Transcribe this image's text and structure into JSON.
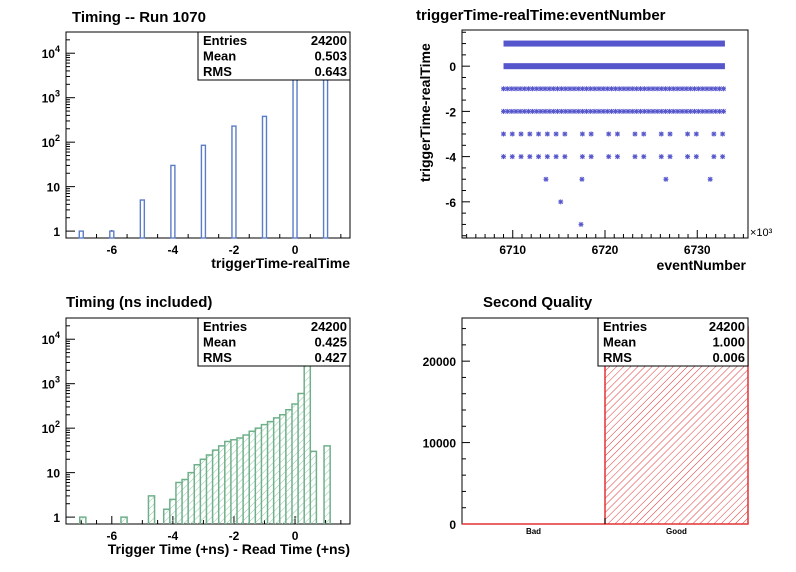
{
  "colors": {
    "blue": "#5b7cc7",
    "green": "#6fb08a",
    "green_fill": "#8cc8a4",
    "red": "#e33434",
    "scatter": "#5555cc"
  },
  "chart_data": [
    {
      "id": "p1",
      "type": "bar",
      "title": "Timing -- Run 1070",
      "xlabel": "triggerTime-realTime",
      "ylabel": "",
      "xlim": [
        -7.5,
        1.8
      ],
      "ylim": [
        0.7,
        30000
      ],
      "yscale": "log",
      "x_ticks": [
        -6,
        -4,
        -2,
        0
      ],
      "y_ticks": [
        "1",
        "10",
        "10^2",
        "10^3",
        "10^4"
      ],
      "x": [
        -7,
        -6,
        -5,
        -4,
        -3,
        -2,
        -1,
        0,
        1
      ],
      "values": [
        1,
        1,
        5,
        30,
        85,
        230,
        380,
        11000,
        14000
      ],
      "stats": [
        {
          "label": "Entries",
          "value": "24200"
        },
        {
          "label": "Mean",
          "value": "0.503"
        },
        {
          "label": "RMS",
          "value": "0.643"
        }
      ]
    },
    {
      "id": "p2",
      "type": "scatter",
      "title": "triggerTime-realTime:eventNumber",
      "xlabel": "eventNumber",
      "ylabel": "triggerTime-realTime",
      "x_multiplier": "×10³",
      "xlim": [
        6704.5,
        6735.5
      ],
      "ylim": [
        -7.6,
        1.6
      ],
      "x_ticks": [
        "6710",
        "6720",
        "6730"
      ],
      "y_ticks": [
        "0",
        "-2",
        "-4",
        "-6"
      ],
      "bands": [
        {
          "y": 1,
          "x": [
            6709,
            6733
          ],
          "density": "dense"
        },
        {
          "y": 0,
          "x": [
            6709,
            6733
          ],
          "density": "dense"
        },
        {
          "y": -1,
          "x": [
            6709,
            6733
          ],
          "density": "medium"
        },
        {
          "y": -2,
          "x": [
            6709,
            6733
          ],
          "density": "medium"
        },
        {
          "y": -3,
          "x": [
            6709,
            6733
          ],
          "density": "sparse"
        },
        {
          "y": -4,
          "x": [
            6709,
            6733
          ],
          "density": "sparse"
        }
      ],
      "points": [
        {
          "x": 6713.6,
          "y": -5
        },
        {
          "x": 6717.5,
          "y": -5
        },
        {
          "x": 6726.6,
          "y": -5
        },
        {
          "x": 6731.4,
          "y": -5
        },
        {
          "x": 6715.2,
          "y": -6
        },
        {
          "x": 6717.4,
          "y": -7
        }
      ]
    },
    {
      "id": "p3",
      "type": "area",
      "title": "Timing (ns included)",
      "xlabel": "Trigger Time (+ns) - Read Time (+ns)",
      "ylabel": "",
      "xlim": [
        -7.5,
        1.8
      ],
      "ylim": [
        0.7,
        30000
      ],
      "yscale": "log",
      "x_ticks": [
        -6,
        -4,
        -2,
        0
      ],
      "y_ticks": [
        "1",
        "10",
        "10^2",
        "10^3",
        "10^4"
      ],
      "x": [
        -6.95,
        -5.6,
        -4.7,
        -4.2,
        -4.0,
        -3.8,
        -3.6,
        -3.4,
        -3.2,
        -3.0,
        -2.8,
        -2.6,
        -2.4,
        -2.2,
        -2.0,
        -1.8,
        -1.6,
        -1.4,
        -1.2,
        -1.0,
        -0.8,
        -0.6,
        -0.4,
        -0.2,
        0.0,
        0.2,
        0.4,
        0.6,
        1.05
      ],
      "values": [
        1,
        1,
        3,
        1.5,
        2.5,
        6,
        7,
        10,
        15,
        20,
        25,
        32,
        40,
        50,
        55,
        60,
        70,
        85,
        100,
        120,
        140,
        170,
        200,
        260,
        350,
        600,
        22000,
        30,
        40
      ],
      "stats": [
        {
          "label": "Entries",
          "value": "24200"
        },
        {
          "label": "Mean",
          "value": "0.425"
        },
        {
          "label": "RMS",
          "value": "0.427"
        }
      ]
    },
    {
      "id": "p4",
      "type": "bar",
      "title": "Second Quality",
      "xlabel": "",
      "ylabel": "",
      "categories": [
        "Bad",
        "Good"
      ],
      "values": [
        0,
        24200
      ],
      "ylim": [
        0,
        25300
      ],
      "y_ticks": [
        "0",
        "10000",
        "20000"
      ],
      "stats": [
        {
          "label": "Entries",
          "value": "24200"
        },
        {
          "label": "Mean",
          "value": "1.000"
        },
        {
          "label": "RMS",
          "value": "0.006"
        }
      ]
    }
  ]
}
